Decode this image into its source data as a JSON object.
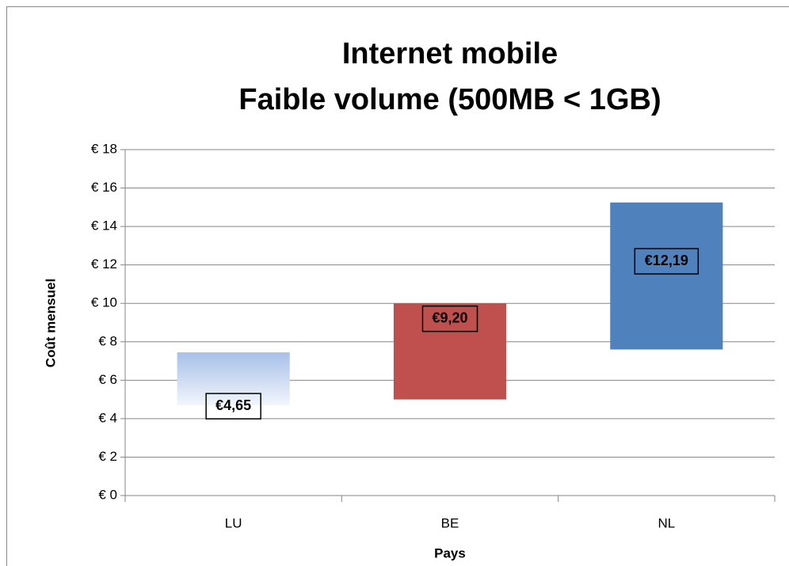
{
  "chart_data": {
    "type": "floating-bar",
    "title": [
      "Internet mobile",
      "Faible volume (500MB < 1GB)"
    ],
    "x_label": "Pays",
    "y_label": "Coût mensuel",
    "categories": [
      "LU",
      "BE",
      "NL"
    ],
    "low": [
      4.7,
      5.0,
      7.6
    ],
    "high": [
      7.45,
      10.0,
      15.25
    ],
    "values": [
      4.65,
      9.2,
      12.19
    ],
    "value_labels": [
      "€4,65",
      "€9,20",
      "€12,19"
    ],
    "colors": [
      "#a7bfe8",
      "#c0504d",
      "#4f81bd"
    ],
    "gradient": [
      true,
      false,
      false
    ],
    "ylim": [
      0,
      18
    ],
    "yticks": [
      {
        "value": 0,
        "label": "€ 0"
      },
      {
        "value": 2,
        "label": "€ 2"
      },
      {
        "value": 4,
        "label": "€ 4"
      },
      {
        "value": 6,
        "label": "€ 6"
      },
      {
        "value": 8,
        "label": "€ 8"
      },
      {
        "value": 10,
        "label": "€ 10"
      },
      {
        "value": 12,
        "label": "€ 12"
      },
      {
        "value": 14,
        "label": "€ 14"
      },
      {
        "value": 16,
        "label": "€ 16"
      },
      {
        "value": 18,
        "label": "€ 18"
      }
    ],
    "grid": true
  }
}
